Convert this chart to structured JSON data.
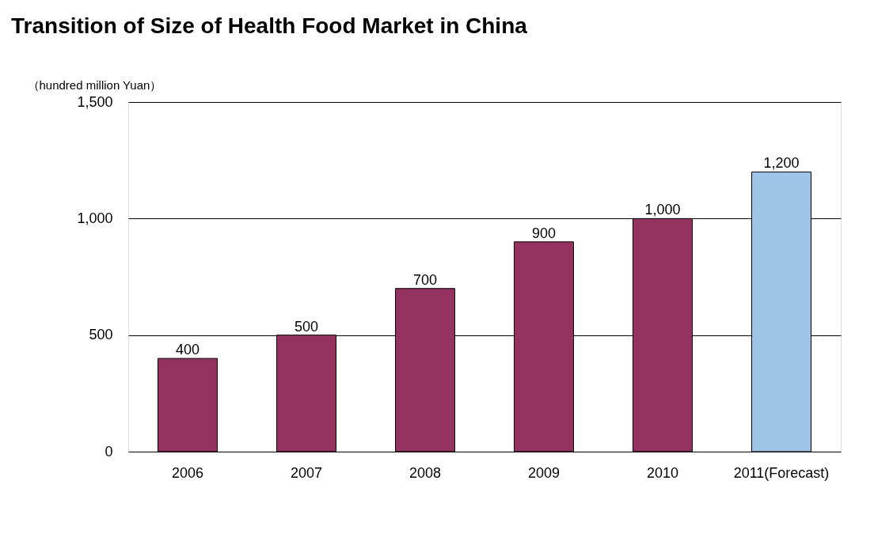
{
  "chart_data": {
    "type": "bar",
    "title": "Transition of Size of Health Food Market in China",
    "ylabel": "（hundred million Yuan）",
    "categories": [
      "2006",
      "2007",
      "2008",
      "2009",
      "2010",
      "2011(Forecast)"
    ],
    "values": [
      400,
      500,
      700,
      900,
      1000,
      1200
    ],
    "value_labels": [
      "400",
      "500",
      "700",
      "900",
      "1,000",
      "1,200"
    ],
    "colors": [
      "#943360",
      "#943360",
      "#943360",
      "#943360",
      "#943360",
      "#9dc3e6"
    ],
    "ylim": [
      0,
      1500
    ],
    "yticks": [
      0,
      500,
      {
        "value": 1000,
        "label": "1,000"
      },
      {
        "value": 1500,
        "label": "1,500"
      }
    ],
    "grid": "y"
  }
}
